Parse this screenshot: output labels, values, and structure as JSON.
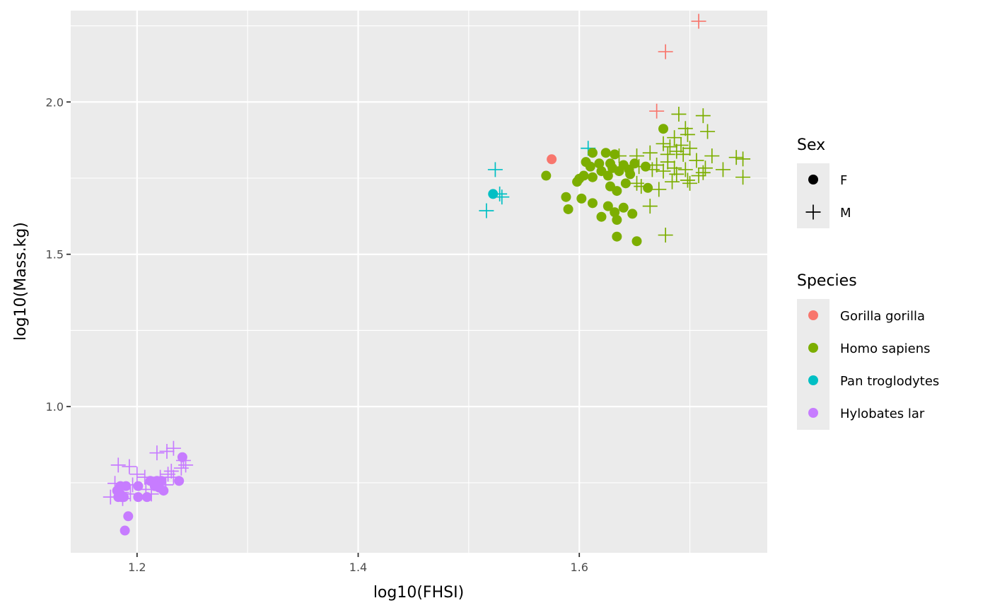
{
  "chart_data": {
    "type": "scatter",
    "xlabel": "log10(FHSI)",
    "ylabel": "log10(Mass.kg)",
    "xlim": [
      1.14,
      1.77
    ],
    "ylim": [
      0.52,
      2.3
    ],
    "x_ticks": [
      1.2,
      1.4,
      1.6
    ],
    "x_tick_labels": [
      "1.2",
      "1.4",
      "1.6"
    ],
    "y_ticks": [
      1.0,
      1.5,
      2.0
    ],
    "y_tick_labels": [
      "1.0",
      "1.5",
      "2.0"
    ],
    "x_minor_ticks": [
      1.3,
      1.5,
      1.7
    ],
    "y_minor_ticks": [
      0.75,
      1.25,
      1.75,
      2.25
    ],
    "grid": true,
    "legend_position": "right",
    "legends": {
      "shape": {
        "title": "Sex",
        "entries": [
          {
            "label": "F",
            "shape": "circle"
          },
          {
            "label": "M",
            "shape": "plus"
          }
        ]
      },
      "color": {
        "title": "Species",
        "entries": [
          {
            "label": "Gorilla gorilla",
            "color": "#F8766D"
          },
          {
            "label": "Homo sapiens",
            "color": "#7CAE00"
          },
          {
            "label": "Pan troglodytes",
            "color": "#00BFC4"
          },
          {
            "label": "Hylobates lar",
            "color": "#C77CFF"
          }
        ]
      }
    },
    "series": [
      {
        "species": "Gorilla gorilla",
        "sex": "F",
        "color": "#F8766D",
        "shape": "circle",
        "points": [
          [
            1.575,
            1.812
          ]
        ]
      },
      {
        "species": "Gorilla gorilla",
        "sex": "M",
        "color": "#F8766D",
        "shape": "plus",
        "points": [
          [
            1.708,
            2.265
          ],
          [
            1.678,
            2.165
          ],
          [
            1.67,
            1.97
          ]
        ]
      },
      {
        "species": "Pan troglodytes",
        "sex": "F",
        "color": "#00BFC4",
        "shape": "circle",
        "points": [
          [
            1.522,
            1.698
          ]
        ]
      },
      {
        "species": "Pan troglodytes",
        "sex": "M",
        "color": "#00BFC4",
        "shape": "plus",
        "points": [
          [
            1.608,
            1.848
          ],
          [
            1.524,
            1.778
          ],
          [
            1.528,
            1.698
          ],
          [
            1.53,
            1.688
          ],
          [
            1.516,
            1.643
          ]
        ]
      },
      {
        "species": "Homo sapiens",
        "sex": "F",
        "color": "#7CAE00",
        "shape": "circle",
        "points": [
          [
            1.676,
            1.912
          ],
          [
            1.612,
            1.833
          ],
          [
            1.624,
            1.833
          ],
          [
            1.632,
            1.828
          ],
          [
            1.606,
            1.803
          ],
          [
            1.618,
            1.798
          ],
          [
            1.628,
            1.798
          ],
          [
            1.64,
            1.793
          ],
          [
            1.65,
            1.798
          ],
          [
            1.61,
            1.788
          ],
          [
            1.63,
            1.783
          ],
          [
            1.645,
            1.778
          ],
          [
            1.66,
            1.788
          ],
          [
            1.62,
            1.773
          ],
          [
            1.636,
            1.773
          ],
          [
            1.604,
            1.758
          ],
          [
            1.612,
            1.753
          ],
          [
            1.626,
            1.758
          ],
          [
            1.646,
            1.763
          ],
          [
            1.57,
            1.758
          ],
          [
            1.6,
            1.748
          ],
          [
            1.598,
            1.738
          ],
          [
            1.642,
            1.733
          ],
          [
            1.628,
            1.723
          ],
          [
            1.662,
            1.718
          ],
          [
            1.634,
            1.708
          ],
          [
            1.588,
            1.688
          ],
          [
            1.602,
            1.683
          ],
          [
            1.612,
            1.668
          ],
          [
            1.626,
            1.658
          ],
          [
            1.64,
            1.653
          ],
          [
            1.59,
            1.648
          ],
          [
            1.632,
            1.638
          ],
          [
            1.648,
            1.633
          ],
          [
            1.62,
            1.623
          ],
          [
            1.634,
            1.613
          ],
          [
            1.634,
            1.558
          ],
          [
            1.652,
            1.543
          ]
        ]
      },
      {
        "species": "Homo sapiens",
        "sex": "M",
        "color": "#7CAE00",
        "shape": "plus",
        "points": [
          [
            1.69,
            1.96
          ],
          [
            1.712,
            1.955
          ],
          [
            1.696,
            1.913
          ],
          [
            1.716,
            1.903
          ],
          [
            1.698,
            1.893
          ],
          [
            1.686,
            1.883
          ],
          [
            1.676,
            1.863
          ],
          [
            1.692,
            1.858
          ],
          [
            1.682,
            1.853
          ],
          [
            1.7,
            1.848
          ],
          [
            1.688,
            1.838
          ],
          [
            1.664,
            1.833
          ],
          [
            1.68,
            1.828
          ],
          [
            1.694,
            1.828
          ],
          [
            1.72,
            1.823
          ],
          [
            1.636,
            1.823
          ],
          [
            1.652,
            1.823
          ],
          [
            1.742,
            1.818
          ],
          [
            1.748,
            1.813
          ],
          [
            1.706,
            1.808
          ],
          [
            1.68,
            1.803
          ],
          [
            1.67,
            1.793
          ],
          [
            1.654,
            1.788
          ],
          [
            1.686,
            1.783
          ],
          [
            1.714,
            1.783
          ],
          [
            1.666,
            1.778
          ],
          [
            1.696,
            1.778
          ],
          [
            1.73,
            1.778
          ],
          [
            1.676,
            1.773
          ],
          [
            1.712,
            1.768
          ],
          [
            1.688,
            1.763
          ],
          [
            1.708,
            1.758
          ],
          [
            1.748,
            1.753
          ],
          [
            1.698,
            1.743
          ],
          [
            1.684,
            1.738
          ],
          [
            1.7,
            1.733
          ],
          [
            1.652,
            1.733
          ],
          [
            1.656,
            1.723
          ],
          [
            1.672,
            1.713
          ],
          [
            1.664,
            1.658
          ],
          [
            1.678,
            1.563
          ]
        ]
      },
      {
        "species": "Hylobates lar",
        "sex": "F",
        "color": "#C77CFF",
        "shape": "circle",
        "points": [
          [
            1.241,
            0.834
          ],
          [
            1.212,
            0.756
          ],
          [
            1.218,
            0.756
          ],
          [
            1.222,
            0.756
          ],
          [
            1.238,
            0.756
          ],
          [
            1.185,
            0.739
          ],
          [
            1.19,
            0.739
          ],
          [
            1.201,
            0.739
          ],
          [
            1.216,
            0.739
          ],
          [
            1.22,
            0.734
          ],
          [
            1.182,
            0.724
          ],
          [
            1.224,
            0.724
          ],
          [
            1.185,
            0.712
          ],
          [
            1.186,
            0.703
          ],
          [
            1.183,
            0.703
          ],
          [
            1.188,
            0.703
          ],
          [
            1.201,
            0.703
          ],
          [
            1.209,
            0.703
          ],
          [
            1.192,
            0.64
          ],
          [
            1.189,
            0.593
          ]
        ]
      },
      {
        "species": "Hylobates lar",
        "sex": "M",
        "color": "#C77CFF",
        "shape": "plus",
        "points": [
          [
            1.233,
            0.863
          ],
          [
            1.227,
            0.853
          ],
          [
            1.218,
            0.848
          ],
          [
            1.242,
            0.823
          ],
          [
            1.244,
            0.808
          ],
          [
            1.24,
            0.798
          ],
          [
            1.183,
            0.808
          ],
          [
            1.193,
            0.803
          ],
          [
            1.231,
            0.788
          ],
          [
            1.2,
            0.778
          ],
          [
            1.228,
            0.778
          ],
          [
            1.207,
            0.768
          ],
          [
            1.221,
            0.768
          ],
          [
            1.233,
            0.768
          ],
          [
            1.18,
            0.748
          ],
          [
            1.196,
            0.743
          ],
          [
            1.226,
            0.743
          ],
          [
            1.208,
            0.728
          ],
          [
            1.186,
            0.718
          ],
          [
            1.176,
            0.703
          ],
          [
            1.194,
            0.713
          ],
          [
            1.213,
            0.713
          ],
          [
            1.187,
            0.698
          ]
        ]
      }
    ]
  }
}
